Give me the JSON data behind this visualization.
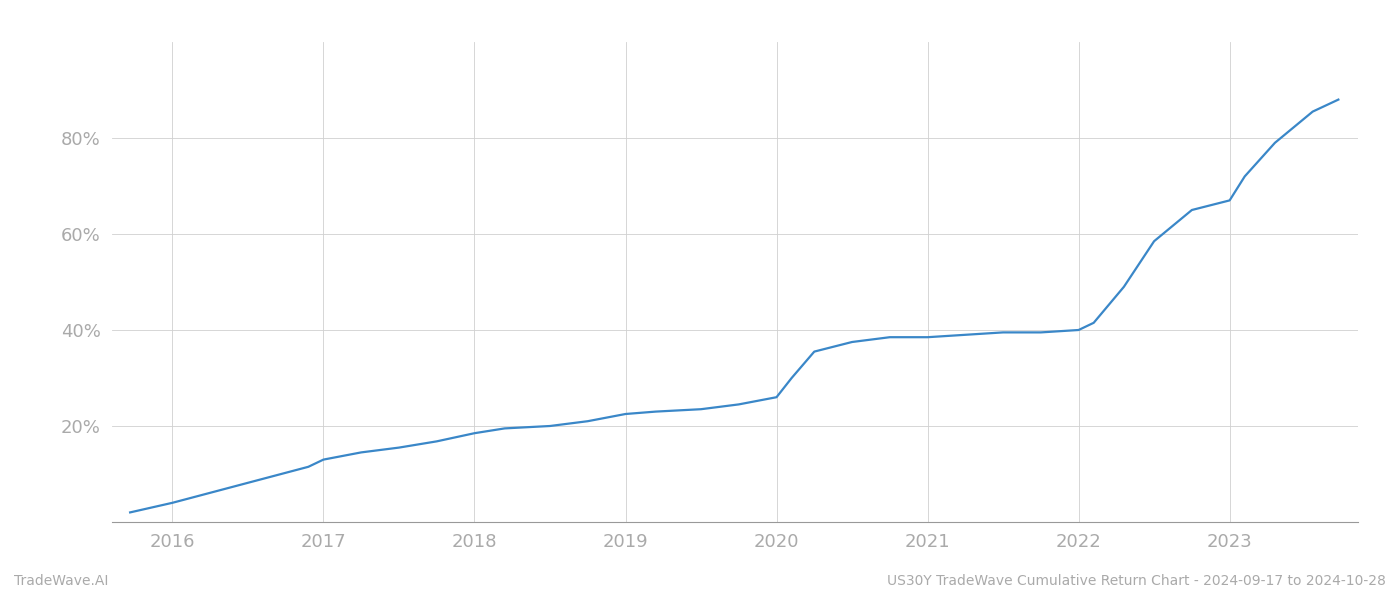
{
  "x_years": [
    2015.72,
    2016.0,
    2016.3,
    2016.6,
    2016.9,
    2017.0,
    2017.25,
    2017.5,
    2017.75,
    2018.0,
    2018.2,
    2018.5,
    2018.75,
    2019.0,
    2019.2,
    2019.5,
    2019.75,
    2020.0,
    2020.1,
    2020.25,
    2020.5,
    2020.75,
    2021.0,
    2021.25,
    2021.5,
    2021.75,
    2022.0,
    2022.1,
    2022.3,
    2022.5,
    2022.75,
    2023.0,
    2023.1,
    2023.3,
    2023.55,
    2023.72
  ],
  "y_values": [
    2.0,
    4.0,
    6.5,
    9.0,
    11.5,
    13.0,
    14.5,
    15.5,
    16.8,
    18.5,
    19.5,
    20.0,
    21.0,
    22.5,
    23.0,
    23.5,
    24.5,
    26.0,
    30.0,
    35.5,
    37.5,
    38.5,
    38.5,
    39.0,
    39.5,
    39.5,
    40.0,
    41.5,
    49.0,
    58.5,
    65.0,
    67.0,
    72.0,
    79.0,
    85.5,
    88.0
  ],
  "line_color": "#3a87c8",
  "line_width": 1.6,
  "bg_color": "#ffffff",
  "grid_color": "#d0d0d0",
  "x_ticks": [
    2016,
    2017,
    2018,
    2019,
    2020,
    2021,
    2022,
    2023
  ],
  "y_ticks": [
    20,
    40,
    60,
    80
  ],
  "y_tick_labels": [
    "20%",
    "40%",
    "60%",
    "80%"
  ],
  "xlim": [
    2015.6,
    2023.85
  ],
  "ylim": [
    0,
    100
  ],
  "footer_left": "TradeWave.AI",
  "footer_right": "US30Y TradeWave Cumulative Return Chart - 2024-09-17 to 2024-10-28",
  "footer_color": "#aaaaaa",
  "footer_fontsize": 10,
  "tick_label_color": "#aaaaaa",
  "tick_fontsize": 13
}
